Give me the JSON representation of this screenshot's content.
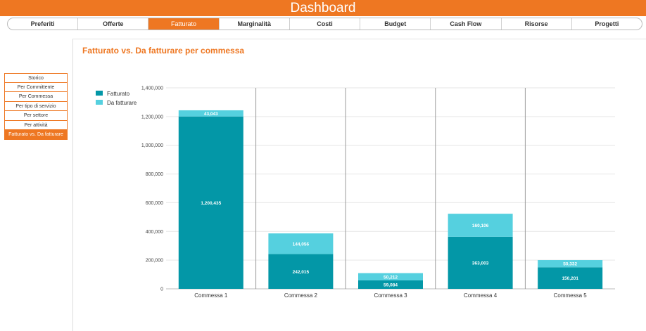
{
  "app": {
    "title": "Dashboard"
  },
  "nav": {
    "tabs": [
      {
        "label": "Preferiti",
        "active": false
      },
      {
        "label": "Offerte",
        "active": false
      },
      {
        "label": "Fatturato",
        "active": true
      },
      {
        "label": "Marginalità",
        "active": false
      },
      {
        "label": "Costi",
        "active": false
      },
      {
        "label": "Budget",
        "active": false
      },
      {
        "label": "Cash Flow",
        "active": false
      },
      {
        "label": "Risorse",
        "active": false
      },
      {
        "label": "Progetti",
        "active": false
      }
    ]
  },
  "sidebar": {
    "items": [
      {
        "label": "Storico",
        "active": false
      },
      {
        "label": "Per Committente",
        "active": false
      },
      {
        "label": "Per Commessa",
        "active": false
      },
      {
        "label": "Per tipo di servizio",
        "active": false
      },
      {
        "label": "Per settore",
        "active": false
      },
      {
        "label": "Per attività",
        "active": false
      },
      {
        "label": "Fatturato vs. Da fatturare",
        "active": true
      }
    ]
  },
  "colors": {
    "accent": "#ee7722",
    "fatturato": "#0397a7",
    "da_fatturare": "#55d0df"
  },
  "chart_data": {
    "type": "bar",
    "stacked": true,
    "title": "Fatturato vs. Da fatturare per commessa",
    "categories": [
      "Commessa 1",
      "Commessa 2",
      "Commessa 3",
      "Commessa 4",
      "Commessa 5"
    ],
    "series": [
      {
        "name": "Fatturato",
        "values": [
          1200435,
          242015,
          59084,
          363003,
          150201
        ],
        "labels": [
          "1,200,435",
          "242,015",
          "59,084",
          "363,003",
          "150,201"
        ]
      },
      {
        "name": "Da fatturare",
        "values": [
          43043,
          144056,
          50212,
          160106,
          50332
        ],
        "labels": [
          "43,043",
          "144,056",
          "50,212",
          "160,106",
          "50,332"
        ]
      }
    ],
    "ylim": [
      0,
      1400000
    ],
    "yticks": [
      {
        "value": 0,
        "label": "0"
      },
      {
        "value": 200000,
        "label": "200,000"
      },
      {
        "value": 400000,
        "label": "400,000"
      },
      {
        "value": 600000,
        "label": "600,000"
      },
      {
        "value": 800000,
        "label": "800,000"
      },
      {
        "value": 1000000,
        "label": "1,000,000"
      },
      {
        "value": 1200000,
        "label": "1,200,000"
      },
      {
        "value": 1400000,
        "label": "1,400,000"
      }
    ],
    "grid": true,
    "legend": "top-left"
  }
}
